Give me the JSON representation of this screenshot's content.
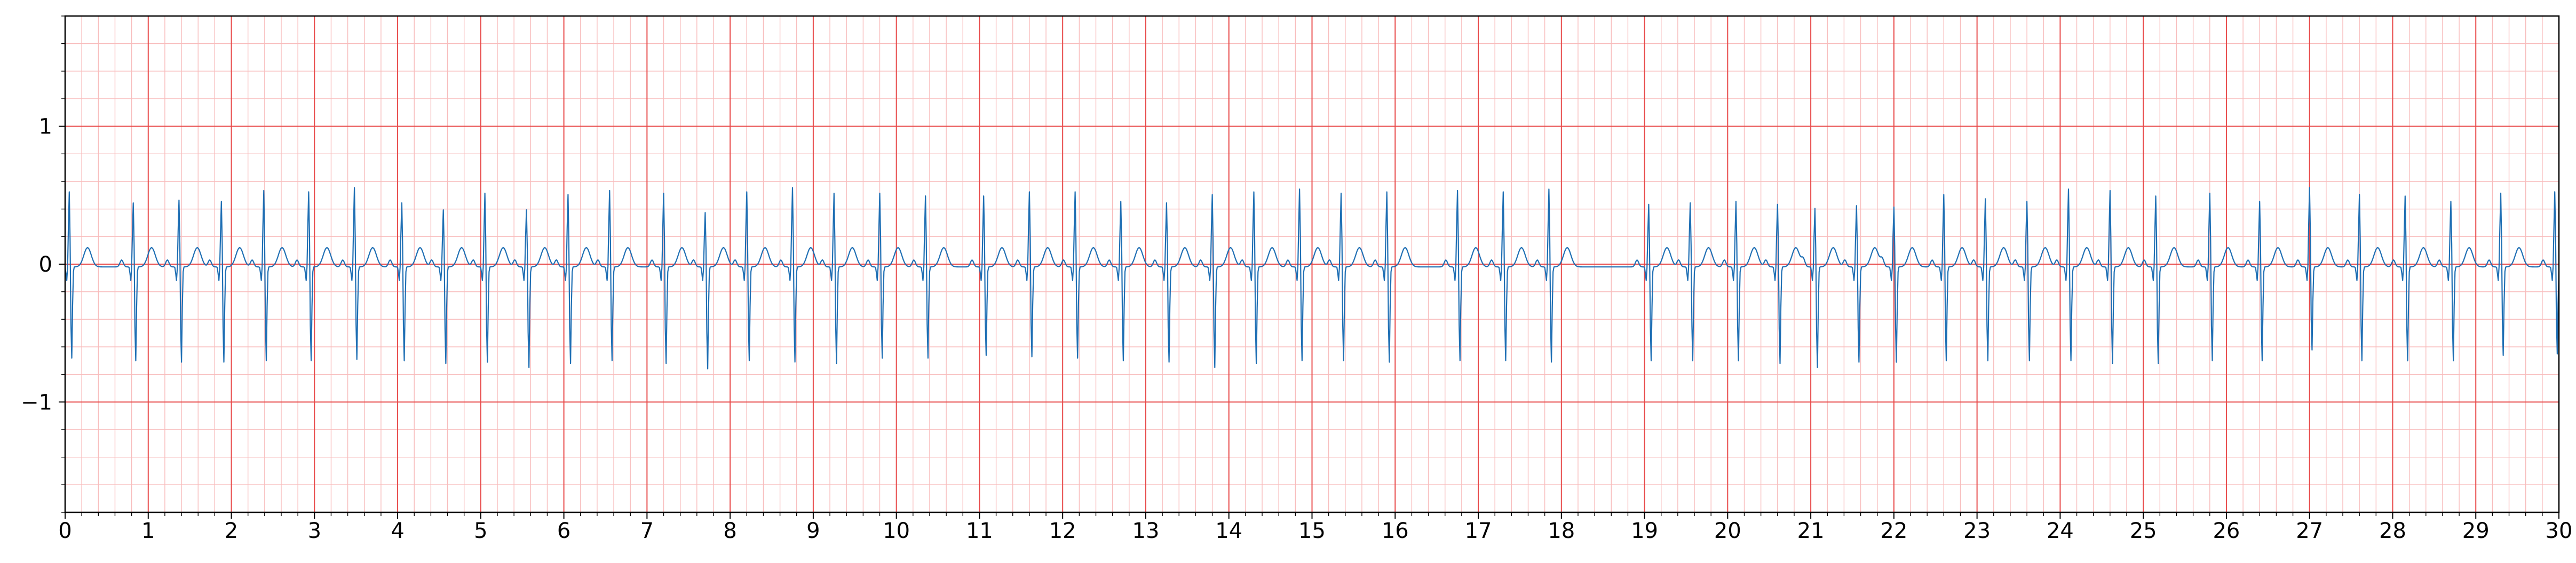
{
  "chart_data": {
    "type": "line",
    "title": "",
    "xlabel": "",
    "ylabel": "",
    "xlim": [
      0,
      30
    ],
    "ylim": [
      -1.8,
      1.8
    ],
    "x_ticks": [
      "0",
      "1",
      "2",
      "3",
      "4",
      "5",
      "6",
      "7",
      "8",
      "9",
      "10",
      "11",
      "12",
      "13",
      "14",
      "15",
      "16",
      "17",
      "18",
      "19",
      "20",
      "21",
      "22",
      "23",
      "24",
      "25",
      "26",
      "27",
      "28",
      "29",
      "30"
    ],
    "y_ticks": [
      {
        "value": -1,
        "label": "−1"
      },
      {
        "value": 0,
        "label": "0"
      },
      {
        "value": 1,
        "label": "1"
      }
    ],
    "grid": {
      "major_x": 1,
      "major_y": 1,
      "minor_x": 0.2,
      "minor_y": 0.2,
      "major_color": "#e84a4a",
      "minor_color": "#f8bcbc"
    },
    "series": [
      {
        "color": "#1f6fb4",
        "sampling_rate": 100,
        "beats": [
          {
            "t": 0.05,
            "r": 0.55,
            "s": -0.68
          },
          {
            "t": 0.82,
            "r": 0.47,
            "s": -0.7
          },
          {
            "t": 1.37,
            "r": 0.49,
            "s": -0.71
          },
          {
            "t": 1.88,
            "r": 0.48,
            "s": -0.71
          },
          {
            "t": 2.39,
            "r": 0.56,
            "s": -0.7
          },
          {
            "t": 2.93,
            "r": 0.55,
            "s": -0.7
          },
          {
            "t": 3.48,
            "r": 0.58,
            "s": -0.69
          },
          {
            "t": 4.05,
            "r": 0.47,
            "s": -0.7
          },
          {
            "t": 4.55,
            "r": 0.42,
            "s": -0.72
          },
          {
            "t": 5.05,
            "r": 0.54,
            "s": -0.71
          },
          {
            "t": 5.55,
            "r": 0.42,
            "s": -0.75
          },
          {
            "t": 6.05,
            "r": 0.53,
            "s": -0.72
          },
          {
            "t": 6.55,
            "r": 0.56,
            "s": -0.7
          },
          {
            "t": 7.2,
            "r": 0.54,
            "s": -0.72
          },
          {
            "t": 7.7,
            "r": 0.4,
            "s": -0.76
          },
          {
            "t": 8.2,
            "r": 0.55,
            "s": -0.7
          },
          {
            "t": 8.75,
            "r": 0.58,
            "s": -0.71
          },
          {
            "t": 9.25,
            "r": 0.54,
            "s": -0.72
          },
          {
            "t": 9.8,
            "r": 0.54,
            "s": -0.68
          },
          {
            "t": 10.35,
            "r": 0.52,
            "s": -0.68
          },
          {
            "t": 11.05,
            "r": 0.52,
            "s": -0.66
          },
          {
            "t": 11.6,
            "r": 0.55,
            "s": -0.67
          },
          {
            "t": 12.15,
            "r": 0.55,
            "s": -0.68
          },
          {
            "t": 12.7,
            "r": 0.48,
            "s": -0.7
          },
          {
            "t": 13.25,
            "r": 0.47,
            "s": -0.71
          },
          {
            "t": 13.8,
            "r": 0.53,
            "s": -0.75
          },
          {
            "t": 14.3,
            "r": 0.55,
            "s": -0.72
          },
          {
            "t": 14.85,
            "r": 0.57,
            "s": -0.7
          },
          {
            "t": 15.35,
            "r": 0.54,
            "s": -0.7
          },
          {
            "t": 15.9,
            "r": 0.55,
            "s": -0.71
          },
          {
            "t": 16.75,
            "r": 0.56,
            "s": -0.7
          },
          {
            "t": 17.3,
            "r": 0.55,
            "s": -0.7
          },
          {
            "t": 17.85,
            "r": 0.57,
            "s": -0.71
          },
          {
            "t": 19.05,
            "r": 0.46,
            "s": -0.7
          },
          {
            "t": 19.55,
            "r": 0.47,
            "s": -0.7
          },
          {
            "t": 20.1,
            "r": 0.48,
            "s": -0.7
          },
          {
            "t": 20.6,
            "r": 0.46,
            "s": -0.72
          },
          {
            "t": 21.05,
            "r": 0.43,
            "s": -0.75
          },
          {
            "t": 21.55,
            "r": 0.45,
            "s": -0.71
          },
          {
            "t": 22.0,
            "r": 0.44,
            "s": -0.71
          },
          {
            "t": 22.6,
            "r": 0.53,
            "s": -0.7
          },
          {
            "t": 23.1,
            "r": 0.5,
            "s": -0.7
          },
          {
            "t": 23.6,
            "r": 0.48,
            "s": -0.7
          },
          {
            "t": 24.1,
            "r": 0.57,
            "s": -0.7
          },
          {
            "t": 24.6,
            "r": 0.56,
            "s": -0.72
          },
          {
            "t": 25.15,
            "r": 0.52,
            "s": -0.72
          },
          {
            "t": 25.8,
            "r": 0.54,
            "s": -0.7
          },
          {
            "t": 26.4,
            "r": 0.48,
            "s": -0.7
          },
          {
            "t": 27.0,
            "r": 0.58,
            "s": -0.62
          },
          {
            "t": 27.6,
            "r": 0.53,
            "s": -0.7
          },
          {
            "t": 28.15,
            "r": 0.52,
            "s": -0.7
          },
          {
            "t": 28.7,
            "r": 0.48,
            "s": -0.7
          },
          {
            "t": 29.3,
            "r": 0.54,
            "s": -0.66
          },
          {
            "t": 29.95,
            "r": 0.55,
            "s": -0.65
          }
        ]
      }
    ]
  }
}
